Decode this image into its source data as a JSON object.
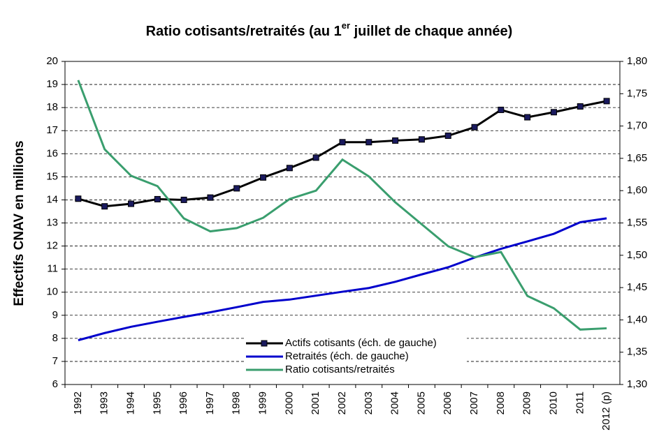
{
  "chart_data": {
    "type": "line",
    "title": [
      "Ratio cotisants/retraités (au 1",
      "er",
      " juillet de chaque année)"
    ],
    "y_label": "Effectifs CNAV en millions",
    "categories": [
      "1992",
      "1993",
      "1994",
      "1995",
      "1996",
      "1997",
      "1998",
      "1999",
      "2000",
      "2001",
      "2002",
      "2003",
      "2004",
      "2005",
      "2006",
      "2007",
      "2008",
      "2009",
      "2010",
      "2011",
      "2012 (p)"
    ],
    "series": [
      {
        "name": "Actifs cotisants (éch. de gauche)",
        "color": "#000000",
        "marker": "square",
        "marker_color": "#1a1a5e",
        "values": [
          14.05,
          13.72,
          13.83,
          14.03,
          14.0,
          14.1,
          14.5,
          14.97,
          15.38,
          15.83,
          16.5,
          16.5,
          16.57,
          16.62,
          16.78,
          17.15,
          17.9,
          17.58,
          17.8,
          18.05,
          18.28
        ]
      },
      {
        "name": "Retraités (éch. de gauche)",
        "color": "#0000cc",
        "values": [
          7.92,
          8.23,
          8.5,
          8.72,
          8.93,
          9.13,
          9.35,
          9.58,
          9.68,
          9.85,
          10.02,
          10.18,
          10.45,
          10.77,
          11.08,
          11.5,
          11.88,
          12.2,
          12.53,
          13.03,
          13.2
        ]
      },
      {
        "name": "Ratio cotisants/retraités",
        "color": "#3a9e6e",
        "axis": "y2",
        "values": [
          1.771,
          1.664,
          1.623,
          1.607,
          1.557,
          1.537,
          1.542,
          1.558,
          1.587,
          1.6,
          1.648,
          1.622,
          1.582,
          1.548,
          1.514,
          1.497,
          1.505,
          1.437,
          1.418,
          1.385,
          1.387
        ]
      }
    ],
    "ylim": [
      6,
      20
    ],
    "yticks": [
      6,
      7,
      8,
      9,
      10,
      11,
      12,
      13,
      14,
      15,
      16,
      17,
      18,
      19,
      20
    ],
    "y2lim": [
      1.3,
      1.8
    ],
    "y2ticks": [
      {
        "value": 1.3,
        "label": "1,30"
      },
      {
        "value": 1.35,
        "label": "1,35"
      },
      {
        "value": 1.4,
        "label": "1,40"
      },
      {
        "value": 1.45,
        "label": "1,45"
      },
      {
        "value": 1.5,
        "label": "1,50"
      },
      {
        "value": 1.55,
        "label": "1,55"
      },
      {
        "value": 1.6,
        "label": "1,60"
      },
      {
        "value": 1.65,
        "label": "1,65"
      },
      {
        "value": 1.7,
        "label": "1,70"
      },
      {
        "value": 1.75,
        "label": "1,75"
      },
      {
        "value": 1.8,
        "label": "1,80"
      }
    ],
    "grid": true
  }
}
